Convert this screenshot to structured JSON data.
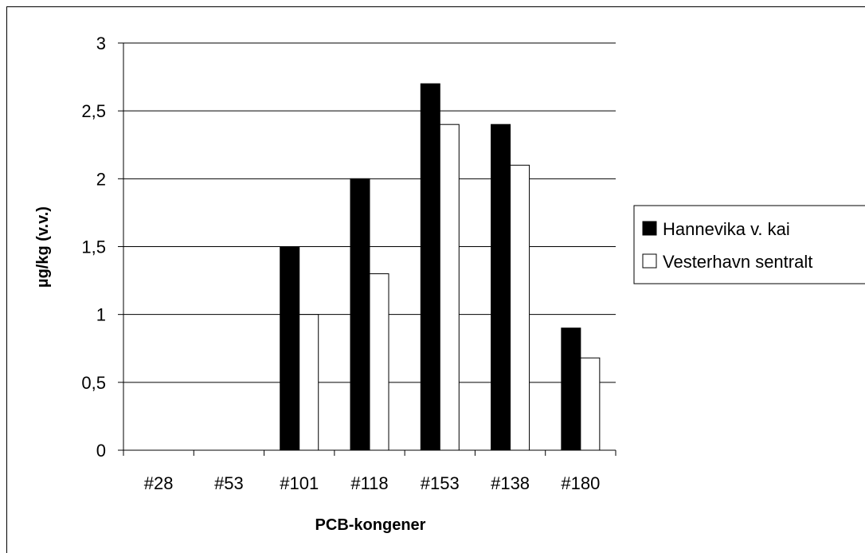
{
  "chart_data": {
    "type": "bar",
    "categories": [
      "#28",
      "#53",
      "#101",
      "#118",
      "#153",
      "#138",
      "#180"
    ],
    "series": [
      {
        "name": "Hannevika v. kai",
        "values": [
          0,
          0,
          1.5,
          2.0,
          2.7,
          2.4,
          0.9
        ],
        "color": "#000000"
      },
      {
        "name": "Vesterhavn sentralt",
        "values": [
          0,
          0,
          1.0,
          1.3,
          2.4,
          2.1,
          0.68
        ],
        "color": "#ffffff"
      }
    ],
    "xlabel": "PCB-kongener",
    "ylabel": "µg/kg (v.v.)",
    "ylim": [
      0,
      3
    ],
    "yticks": [
      0,
      0.5,
      1,
      1.5,
      2,
      2.5,
      3
    ],
    "ytick_labels": [
      "0",
      "0,5",
      "1",
      "1,5",
      "2",
      "2,5",
      "3"
    ],
    "grid": true,
    "legend_position": "right"
  }
}
